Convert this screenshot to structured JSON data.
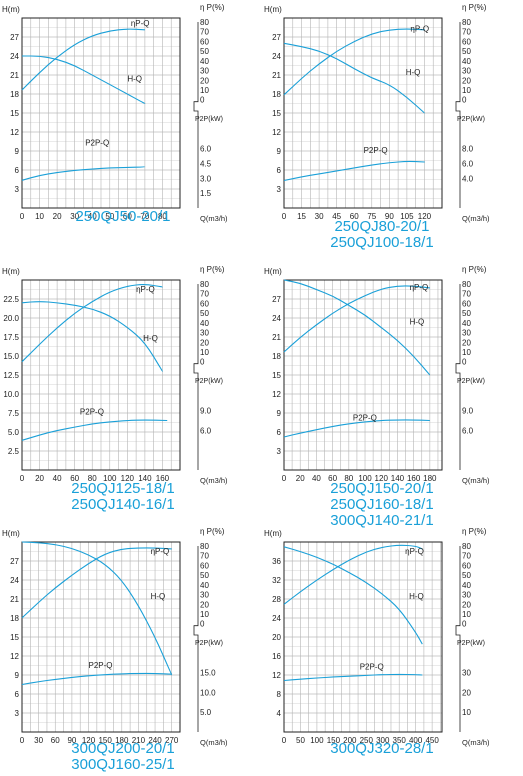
{
  "chart_data": [
    {
      "type": "line",
      "title": "250QJ50-20/1",
      "ylabel": "H(m)",
      "y2label_eff": "η P(%)",
      "y2label_pow": "P2P(kW)",
      "xlabel": "Q(m3/h)",
      "xlim": [
        0,
        90
      ],
      "ylim": [
        0,
        30
      ],
      "x_ticks": [
        0,
        10,
        20,
        30,
        40,
        50,
        60,
        70,
        80
      ],
      "y_ticks": [
        3,
        6,
        9,
        12,
        15,
        18,
        21,
        24,
        27
      ],
      "eff_ticks": [
        0,
        10,
        20,
        30,
        40,
        50,
        60,
        70,
        80
      ],
      "pow_ticks": [
        1.5,
        3.0,
        4.5,
        6.0
      ],
      "pow_tick_labels": [
        "1.5",
        "3.0",
        "4.5",
        "6.0"
      ],
      "grid": true,
      "series": [
        {
          "name": "H-Q",
          "axis": "H",
          "label_at": [
            60,
            20
          ],
          "points": [
            [
              0,
              24
            ],
            [
              10,
              24
            ],
            [
              20,
              23.5
            ],
            [
              30,
              22.5
            ],
            [
              40,
              21
            ],
            [
              50,
              19.5
            ],
            [
              60,
              18
            ],
            [
              70,
              16.5
            ]
          ]
        },
        {
          "name": "ηP-Q",
          "axis": "eff",
          "label_at": [
            62,
            76
          ],
          "points": [
            [
              0,
              10
            ],
            [
              10,
              28
            ],
            [
              20,
              44
            ],
            [
              30,
              57
            ],
            [
              40,
              66
            ],
            [
              50,
              71
            ],
            [
              60,
              73
            ],
            [
              70,
              72
            ]
          ]
        },
        {
          "name": "P2P-Q",
          "axis": "pow",
          "label_at": [
            36,
            6.3
          ],
          "points": [
            [
              0,
              2.8
            ],
            [
              10,
              3.3
            ],
            [
              20,
              3.6
            ],
            [
              30,
              3.8
            ],
            [
              40,
              3.95
            ],
            [
              50,
              4.05
            ],
            [
              60,
              4.1
            ],
            [
              70,
              4.15
            ]
          ]
        }
      ]
    },
    {
      "type": "line",
      "title": "250QJ80-20/1 250QJ100-18/1",
      "ylabel": "H(m)",
      "y2label_eff": "η P(%)",
      "y2label_pow": "P2P(kW)",
      "xlabel": "Q(m3/h)",
      "xlim": [
        0,
        135
      ],
      "ylim": [
        0,
        30
      ],
      "x_ticks": [
        0,
        15,
        30,
        45,
        60,
        75,
        90,
        105,
        120
      ],
      "x_tick_labels": [
        "0",
        "15",
        "30",
        "45",
        "60",
        "75",
        "90",
        "105",
        "120"
      ],
      "y_ticks": [
        3,
        6,
        9,
        12,
        15,
        18,
        21,
        24,
        27
      ],
      "eff_ticks": [
        0,
        10,
        20,
        30,
        40,
        50,
        60,
        70,
        80
      ],
      "pow_ticks": [
        4,
        6,
        8
      ],
      "pow_tick_labels": [
        "4.0",
        "6.0",
        "8.0"
      ],
      "grid": true,
      "series": [
        {
          "name": "H-Q",
          "axis": "H",
          "label_at": [
            104,
            21
          ],
          "points": [
            [
              0,
              26
            ],
            [
              15,
              25.5
            ],
            [
              30,
              24.8
            ],
            [
              45,
              23.6
            ],
            [
              60,
              22
            ],
            [
              75,
              20.5
            ],
            [
              90,
              19.5
            ],
            [
              105,
              17.5
            ],
            [
              120,
              15
            ]
          ]
        },
        {
          "name": "ηP-Q",
          "axis": "eff",
          "label_at": [
            108,
            70
          ],
          "points": [
            [
              0,
              5
            ],
            [
              15,
              22
            ],
            [
              30,
              37
            ],
            [
              45,
              50
            ],
            [
              60,
              60
            ],
            [
              75,
              68
            ],
            [
              90,
              72
            ],
            [
              105,
              73
            ],
            [
              120,
              72
            ]
          ]
        },
        {
          "name": "P2P-Q",
          "axis": "pow",
          "label_at": [
            68,
            7.4
          ],
          "points": [
            [
              0,
              3.7
            ],
            [
              15,
              4.2
            ],
            [
              30,
              4.6
            ],
            [
              45,
              5
            ],
            [
              60,
              5.4
            ],
            [
              75,
              5.8
            ],
            [
              90,
              6.1
            ],
            [
              105,
              6.3
            ],
            [
              120,
              6.2
            ]
          ]
        }
      ]
    },
    {
      "type": "line",
      "title": "250QJ125-18/1 250QJ140-16/1",
      "ylabel": "H(m)",
      "y2label_eff": "η P(%)",
      "y2label_pow": "P2P(kW)",
      "xlabel": "Q(m3/h)",
      "xlim": [
        0,
        180
      ],
      "ylim": [
        0,
        25
      ],
      "x_ticks": [
        0,
        20,
        40,
        60,
        80,
        100,
        120,
        140,
        160
      ],
      "y_ticks": [
        2.5,
        5.0,
        7.5,
        10.0,
        12.5,
        15.0,
        17.5,
        20.0,
        22.5
      ],
      "y_tick_labels": [
        "2.5",
        "5.0",
        "7.5",
        "10.0",
        "12.5",
        "15.0",
        "17.5",
        "20.0",
        "22.5"
      ],
      "eff_ticks": [
        0,
        10,
        20,
        30,
        40,
        50,
        60,
        70,
        80
      ],
      "pow_ticks": [
        6,
        9
      ],
      "pow_tick_labels": [
        "6.0",
        "9.0"
      ],
      "grid": true,
      "series": [
        {
          "name": "H-Q",
          "axis": "H",
          "label_at": [
            138,
            17
          ],
          "points": [
            [
              0,
              22
            ],
            [
              20,
              22.2
            ],
            [
              40,
              22
            ],
            [
              60,
              21.7
            ],
            [
              80,
              21.2
            ],
            [
              100,
              20.3
            ],
            [
              120,
              18.8
            ],
            [
              140,
              16.8
            ],
            [
              160,
              13
            ]
          ]
        },
        {
          "name": "ηP-Q",
          "axis": "eff",
          "label_at": [
            130,
            72
          ],
          "points": [
            [
              0,
              0
            ],
            [
              20,
              18
            ],
            [
              40,
              35
            ],
            [
              60,
              50
            ],
            [
              80,
              62
            ],
            [
              100,
              72
            ],
            [
              120,
              78
            ],
            [
              140,
              80
            ],
            [
              160,
              77
            ]
          ]
        },
        {
          "name": "P2P-Q",
          "axis": "pow",
          "label_at": [
            66,
            8.4
          ],
          "points": [
            [
              0,
              4.5
            ],
            [
              20,
              5.3
            ],
            [
              40,
              6
            ],
            [
              60,
              6.5
            ],
            [
              80,
              7
            ],
            [
              100,
              7.3
            ],
            [
              120,
              7.5
            ],
            [
              140,
              7.6
            ],
            [
              165,
              7.5
            ]
          ]
        }
      ]
    },
    {
      "type": "line",
      "title": "250QJ150-20/1 250QJ160-18/1 300QJ140-21/1",
      "ylabel": "H(m)",
      "y2label_eff": "η P(%)",
      "y2label_pow": "P2P(kW)",
      "xlabel": "Q(m3/h)",
      "xlim": [
        0,
        195
      ],
      "ylim": [
        0,
        30
      ],
      "x_ticks": [
        0,
        20,
        40,
        60,
        80,
        100,
        120,
        140,
        160,
        180
      ],
      "y_ticks": [
        3,
        6,
        9,
        12,
        15,
        18,
        21,
        24,
        27
      ],
      "eff_ticks": [
        0,
        10,
        20,
        30,
        40,
        50,
        60,
        70,
        80
      ],
      "pow_ticks": [
        6,
        9
      ],
      "pow_tick_labels": [
        "6.0",
        "9.0"
      ],
      "grid": true,
      "series": [
        {
          "name": "H-Q",
          "axis": "H",
          "label_at": [
            155,
            23
          ],
          "points": [
            [
              0,
              30
            ],
            [
              20,
              29.5
            ],
            [
              40,
              28.5
            ],
            [
              60,
              27.5
            ],
            [
              80,
              26
            ],
            [
              100,
              24.5
            ],
            [
              120,
              22.5
            ],
            [
              140,
              20.5
            ],
            [
              160,
              18
            ],
            [
              180,
              15
            ]
          ]
        },
        {
          "name": "ηP-Q",
          "axis": "eff",
          "label_at": [
            155,
            74
          ],
          "points": [
            [
              0,
              10
            ],
            [
              20,
              25
            ],
            [
              40,
              38
            ],
            [
              60,
              50
            ],
            [
              80,
              60
            ],
            [
              100,
              68
            ],
            [
              120,
              75
            ],
            [
              140,
              78
            ],
            [
              160,
              78
            ],
            [
              180,
              76
            ]
          ]
        },
        {
          "name": "P2P-Q",
          "axis": "pow",
          "label_at": [
            85,
            7.5
          ],
          "points": [
            [
              0,
              5
            ],
            [
              20,
              5.6
            ],
            [
              40,
              6.1
            ],
            [
              60,
              6.6
            ],
            [
              80,
              7
            ],
            [
              100,
              7.3
            ],
            [
              120,
              7.5
            ],
            [
              140,
              7.6
            ],
            [
              160,
              7.6
            ],
            [
              180,
              7.5
            ]
          ]
        }
      ]
    },
    {
      "type": "line",
      "title": "300QJ200-20/1 300QJ160-25/1",
      "ylabel": "H(m)",
      "y2label_eff": "η P(%)",
      "y2label_pow": "P2P(kW)",
      "xlabel": "Q(m3/h)",
      "xlim": [
        0,
        285
      ],
      "ylim": [
        0,
        30
      ],
      "x_ticks": [
        0,
        30,
        60,
        90,
        120,
        150,
        180,
        210,
        240,
        270
      ],
      "y_ticks": [
        3,
        6,
        9,
        12,
        15,
        18,
        21,
        24,
        27
      ],
      "eff_ticks": [
        0,
        10,
        20,
        30,
        40,
        50,
        60,
        70,
        80
      ],
      "pow_ticks": [
        5,
        10,
        15
      ],
      "pow_tick_labels": [
        "5.0",
        "10.0",
        "15.0"
      ],
      "grid": true,
      "series": [
        {
          "name": "H-Q",
          "axis": "H",
          "label_at": [
            232,
            21
          ],
          "points": [
            [
              0,
              30
            ],
            [
              30,
              29.9
            ],
            [
              60,
              29.6
            ],
            [
              90,
              29
            ],
            [
              120,
              28
            ],
            [
              150,
              26.5
            ],
            [
              180,
              24
            ],
            [
              210,
              20
            ],
            [
              240,
              15
            ],
            [
              270,
              9
            ]
          ]
        },
        {
          "name": "ηP-Q",
          "axis": "eff",
          "label_at": [
            232,
            72
          ],
          "points": [
            [
              0,
              6
            ],
            [
              30,
              22
            ],
            [
              60,
              37
            ],
            [
              90,
              50
            ],
            [
              120,
              62
            ],
            [
              150,
              72
            ],
            [
              180,
              77
            ],
            [
              210,
              78
            ],
            [
              240,
              78
            ],
            [
              270,
              77
            ]
          ]
        },
        {
          "name": "P2P-Q",
          "axis": "pow",
          "label_at": [
            120,
            16.2
          ],
          "points": [
            [
              0,
              12
            ],
            [
              30,
              12.7
            ],
            [
              60,
              13.3
            ],
            [
              90,
              13.8
            ],
            [
              120,
              14.2
            ],
            [
              150,
              14.5
            ],
            [
              180,
              14.7
            ],
            [
              210,
              14.8
            ],
            [
              240,
              14.8
            ],
            [
              270,
              14.6
            ]
          ]
        }
      ]
    },
    {
      "type": "line",
      "title": "300QJ320-28/1",
      "ylabel": "H(m)",
      "y2label_eff": "η P(%)",
      "y2label_pow": "P2P(kW)",
      "xlabel": "Q(m3/h)",
      "xlim": [
        0,
        480
      ],
      "ylim": [
        0,
        40
      ],
      "x_ticks": [
        0,
        50,
        100,
        150,
        200,
        250,
        300,
        350,
        400,
        450
      ],
      "y_ticks": [
        4,
        8,
        12,
        16,
        20,
        24,
        28,
        32,
        36
      ],
      "eff_ticks": [
        0,
        10,
        20,
        30,
        40,
        50,
        60,
        70,
        80
      ],
      "pow_ticks": [
        10,
        20,
        30
      ],
      "pow_tick_labels": [
        "10",
        "20",
        "30"
      ],
      "grid": true,
      "series": [
        {
          "name": "H-Q",
          "axis": "H",
          "label_at": [
            380,
            28
          ],
          "points": [
            [
              0,
              39
            ],
            [
              50,
              38
            ],
            [
              100,
              36.8
            ],
            [
              150,
              35.3
            ],
            [
              200,
              33.5
            ],
            [
              250,
              31.5
            ],
            [
              300,
              29
            ],
            [
              350,
              26
            ],
            [
              400,
              21
            ],
            [
              420,
              18.5
            ]
          ]
        },
        {
          "name": "ηP-Q",
          "axis": "eff",
          "label_at": [
            368,
            72
          ],
          "points": [
            [
              0,
              20
            ],
            [
              50,
              33
            ],
            [
              100,
              45
            ],
            [
              150,
              56
            ],
            [
              200,
              66
            ],
            [
              250,
              74
            ],
            [
              300,
              79
            ],
            [
              350,
              81
            ],
            [
              400,
              80
            ],
            [
              420,
              77
            ]
          ]
        },
        {
          "name": "P2P-Q",
          "axis": "pow",
          "label_at": [
            230,
            31.5
          ],
          "points": [
            [
              0,
              26
            ],
            [
              50,
              26.7
            ],
            [
              100,
              27.3
            ],
            [
              150,
              27.8
            ],
            [
              200,
              28.2
            ],
            [
              250,
              28.6
            ],
            [
              300,
              29
            ],
            [
              350,
              29.1
            ],
            [
              400,
              29
            ],
            [
              420,
              28.8
            ]
          ]
        }
      ]
    }
  ]
}
